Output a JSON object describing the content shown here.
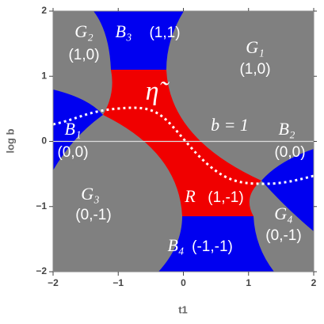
{
  "chart_data": {
    "type": "region",
    "xlabel": "t1",
    "ylabel": "log b",
    "xlim": [
      -2,
      2
    ],
    "ylim": [
      -2,
      2
    ],
    "xticks": [
      {
        "value": -2,
        "label": "−2"
      },
      {
        "value": -1,
        "label": "−1"
      },
      0,
      1,
      2
    ],
    "yticks": [
      {
        "value": -2,
        "label": "−2"
      },
      {
        "value": -1,
        "label": "−1"
      },
      0,
      1,
      2
    ],
    "annotations": [
      "G₂",
      "(1,0)",
      "B₃",
      "(1,1)",
      "G₁",
      "(1,0)",
      "η̃",
      "B₁",
      "(0,0)",
      "b = 1",
      "B₂",
      "(0,0)",
      "G₃",
      "(0,-1)",
      "R",
      "(1,-1)",
      "G₄",
      "(0,-1)",
      "B₄",
      "(-1,-1)"
    ]
  }
}
